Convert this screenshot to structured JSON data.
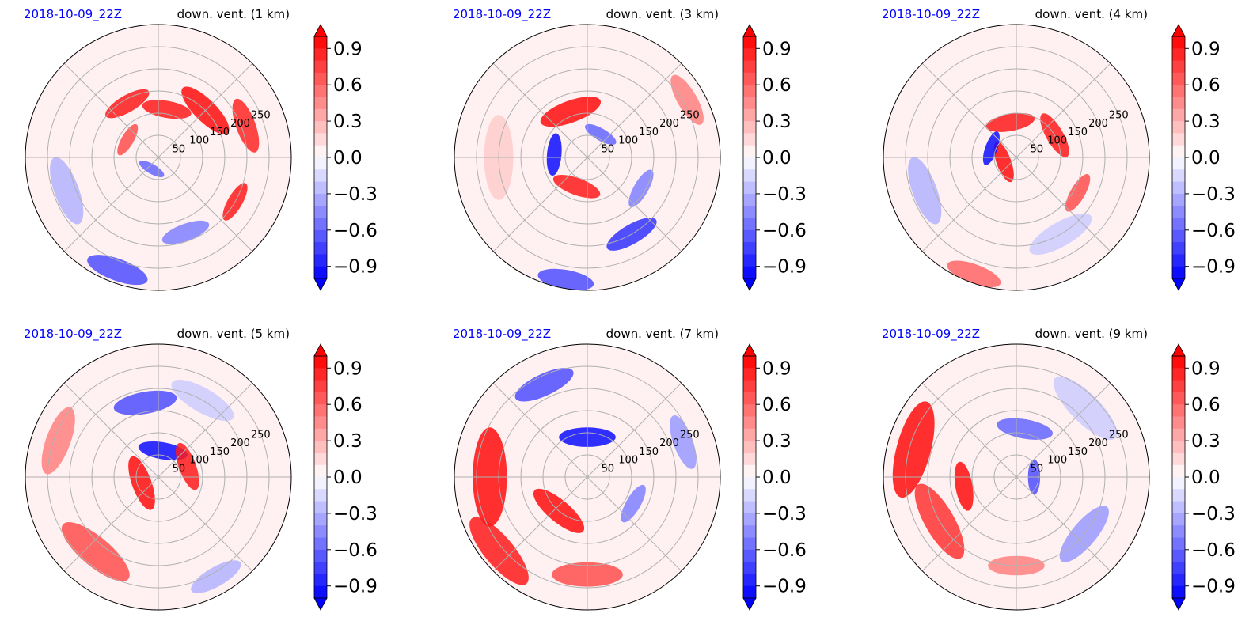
{
  "colors": {
    "positive": "#ff0000",
    "negative": "#0000ff",
    "zero": "#ffffff",
    "grid": "#b0b0b0",
    "date_text": "#0000ff",
    "title_text": "#000000"
  },
  "colorbar": {
    "ticks": [
      "0.9",
      "0.6",
      "0.3",
      "0.0",
      "−0.3",
      "−0.6",
      "−0.9"
    ]
  },
  "chart_data": [
    {
      "type": "heatmap",
      "projection": "polar",
      "date": "2018-10-09_22Z",
      "title": "down. vent. (1 km)",
      "radial_ticks": [
        "50",
        "100",
        "150",
        "200",
        "250"
      ],
      "radial_range": [
        0,
        300
      ],
      "grid": true,
      "colorbar_range": [
        -1.0,
        1.0
      ],
      "colorbar_extend": "both",
      "features": [
        {
          "angle": 45,
          "radius": 150,
          "value": 0.95,
          "width": 45
        },
        {
          "angle": 120,
          "radius": 140,
          "value": 0.9,
          "width": 35
        },
        {
          "angle": 80,
          "radius": 110,
          "value": 0.9,
          "width": 35
        },
        {
          "angle": 20,
          "radius": 210,
          "value": 0.85,
          "width": 40
        },
        {
          "angle": 330,
          "radius": 200,
          "value": 0.9,
          "width": 30
        },
        {
          "angle": 150,
          "radius": 80,
          "value": 0.7,
          "width": 25
        },
        {
          "angle": 250,
          "radius": 270,
          "value": -0.7,
          "width": 45
        },
        {
          "angle": 290,
          "radius": 180,
          "value": -0.5,
          "width": 35
        },
        {
          "angle": 200,
          "radius": 220,
          "value": -0.3,
          "width": 50
        },
        {
          "angle": 240,
          "radius": 30,
          "value": -0.6,
          "width": 20
        }
      ]
    },
    {
      "type": "heatmap",
      "projection": "polar",
      "date": "2018-10-09_22Z",
      "title": "down. vent. (3 km)",
      "radial_ticks": [
        "50",
        "100",
        "150",
        "200",
        "250"
      ],
      "radial_range": [
        0,
        300
      ],
      "grid": true,
      "colorbar_range": [
        -1.0,
        1.0
      ],
      "colorbar_extend": "both",
      "features": [
        {
          "angle": 110,
          "radius": 110,
          "value": 0.95,
          "width": 45
        },
        {
          "angle": 250,
          "radius": 70,
          "value": 0.9,
          "width": 35
        },
        {
          "angle": 175,
          "radius": 75,
          "value": -0.95,
          "width": 30
        },
        {
          "angle": 60,
          "radius": 60,
          "value": -0.6,
          "width": 25
        },
        {
          "angle": 300,
          "radius": 200,
          "value": -0.8,
          "width": 40
        },
        {
          "angle": 260,
          "radius": 280,
          "value": -0.7,
          "width": 40
        },
        {
          "angle": 30,
          "radius": 260,
          "value": 0.5,
          "width": 40
        },
        {
          "angle": 180,
          "radius": 200,
          "value": 0.2,
          "width": 60
        },
        {
          "angle": 330,
          "radius": 140,
          "value": -0.5,
          "width": 30
        }
      ]
    },
    {
      "type": "heatmap",
      "projection": "polar",
      "date": "2018-10-09_22Z",
      "title": "down. vent. (4 km)",
      "radial_ticks": [
        "50",
        "100",
        "150",
        "200",
        "250"
      ],
      "radial_range": [
        0,
        300
      ],
      "grid": true,
      "colorbar_range": [
        -1.0,
        1.0
      ],
      "colorbar_extend": "both",
      "features": [
        {
          "angle": 100,
          "radius": 80,
          "value": 0.9,
          "width": 35
        },
        {
          "angle": 200,
          "radius": 30,
          "value": 0.95,
          "width": 30
        },
        {
          "angle": 160,
          "radius": 60,
          "value": -0.95,
          "width": 25
        },
        {
          "angle": 30,
          "radius": 100,
          "value": 0.9,
          "width": 35
        },
        {
          "angle": 330,
          "radius": 160,
          "value": 0.7,
          "width": 30
        },
        {
          "angle": 250,
          "radius": 280,
          "value": 0.6,
          "width": 40
        },
        {
          "angle": 200,
          "radius": 220,
          "value": -0.3,
          "width": 50
        },
        {
          "angle": 300,
          "radius": 200,
          "value": -0.2,
          "width": 50
        }
      ]
    },
    {
      "type": "heatmap",
      "projection": "polar",
      "date": "2018-10-09_22Z",
      "title": "down. vent. (5 km)",
      "radial_ticks": [
        "50",
        "100",
        "150",
        "200",
        "250"
      ],
      "radial_range": [
        0,
        300
      ],
      "grid": true,
      "colorbar_range": [
        -1.0,
        1.0
      ],
      "colorbar_extend": "both",
      "features": [
        {
          "angle": 100,
          "radius": 170,
          "value": -0.7,
          "width": 45
        },
        {
          "angle": 80,
          "radius": 60,
          "value": -0.95,
          "width": 35
        },
        {
          "angle": 200,
          "radius": 40,
          "value": 0.95,
          "width": 40
        },
        {
          "angle": 20,
          "radius": 70,
          "value": 0.9,
          "width": 35
        },
        {
          "angle": 230,
          "radius": 220,
          "value": 0.7,
          "width": 60
        },
        {
          "angle": 160,
          "radius": 240,
          "value": 0.5,
          "width": 50
        },
        {
          "angle": 300,
          "radius": 260,
          "value": -0.3,
          "width": 40
        },
        {
          "angle": 60,
          "radius": 200,
          "value": -0.2,
          "width": 50
        }
      ]
    },
    {
      "type": "heatmap",
      "projection": "polar",
      "date": "2018-10-09_22Z",
      "title": "down. vent. (7 km)",
      "radial_ticks": [
        "50",
        "100",
        "150",
        "200",
        "250"
      ],
      "radial_range": [
        0,
        300
      ],
      "grid": true,
      "colorbar_range": [
        -1.0,
        1.0
      ],
      "colorbar_extend": "both",
      "features": [
        {
          "angle": 115,
          "radius": 230,
          "value": -0.7,
          "width": 45
        },
        {
          "angle": 90,
          "radius": 90,
          "value": -0.95,
          "width": 40
        },
        {
          "angle": 230,
          "radius": 100,
          "value": 0.95,
          "width": 45
        },
        {
          "angle": 180,
          "radius": 220,
          "value": 0.95,
          "width": 70
        },
        {
          "angle": 220,
          "radius": 260,
          "value": 0.9,
          "width": 60
        },
        {
          "angle": 270,
          "radius": 220,
          "value": 0.7,
          "width": 50
        },
        {
          "angle": 20,
          "radius": 230,
          "value": -0.4,
          "width": 40
        },
        {
          "angle": 330,
          "radius": 120,
          "value": -0.5,
          "width": 30
        }
      ]
    },
    {
      "type": "heatmap",
      "projection": "polar",
      "date": "2018-10-09_22Z",
      "title": "down. vent. (9 km)",
      "radial_ticks": [
        "50",
        "100",
        "150",
        "200",
        "250"
      ],
      "radial_range": [
        0,
        300
      ],
      "grid": true,
      "colorbar_range": [
        -1.0,
        1.0
      ],
      "colorbar_extend": "both",
      "features": [
        {
          "angle": 165,
          "radius": 240,
          "value": 0.95,
          "width": 70
        },
        {
          "angle": 210,
          "radius": 200,
          "value": 0.8,
          "width": 60
        },
        {
          "angle": 190,
          "radius": 120,
          "value": 0.95,
          "width": 35
        },
        {
          "angle": 80,
          "radius": 110,
          "value": -0.6,
          "width": 40
        },
        {
          "angle": 0,
          "radius": 40,
          "value": -0.7,
          "width": 25
        },
        {
          "angle": 320,
          "radius": 200,
          "value": -0.4,
          "width": 50
        },
        {
          "angle": 270,
          "radius": 200,
          "value": 0.5,
          "width": 40
        },
        {
          "angle": 45,
          "radius": 220,
          "value": -0.2,
          "width": 60
        }
      ]
    }
  ]
}
